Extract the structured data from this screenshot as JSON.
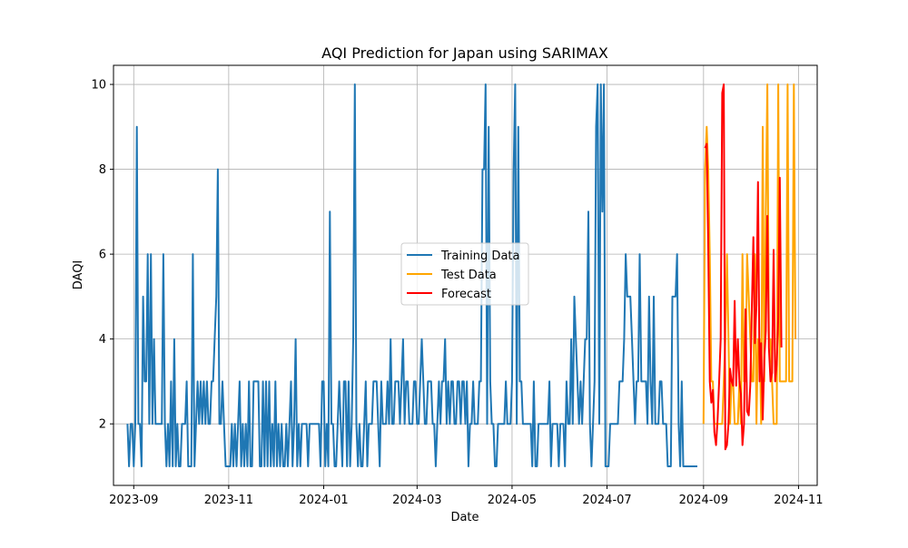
{
  "chart_data": {
    "type": "line",
    "title": "AQI Prediction for Japan using SARIMAX",
    "xlabel": "Date",
    "ylabel": "DAQI",
    "x_ticks": [
      "2023-09",
      "2023-11",
      "2024-01",
      "2024-03",
      "2024-05",
      "2024-07",
      "2024-09",
      "2024-11"
    ],
    "y_ticks": [
      2,
      4,
      6,
      8,
      10
    ],
    "xlim": [
      "2023-08-19",
      "2024-11-13"
    ],
    "ylim": [
      0.55,
      10.45
    ],
    "grid": true,
    "legend_position": "center",
    "series": [
      {
        "name": "Training Data",
        "color": "#1f77b4",
        "start_date": "2023-08-28",
        "values": [
          2,
          1,
          2,
          2,
          1,
          2,
          9,
          2,
          2,
          1,
          5,
          3,
          3,
          6,
          2,
          6,
          2,
          4,
          2,
          2,
          2,
          2,
          2,
          6,
          2,
          1,
          2,
          1,
          3,
          1,
          4,
          1,
          2,
          1,
          1,
          2,
          2,
          2,
          3,
          1,
          1,
          1,
          6,
          1,
          2,
          3,
          2,
          3,
          2,
          3,
          2,
          3,
          2,
          2,
          3,
          3,
          4,
          5,
          8,
          2,
          2,
          3,
          2,
          1,
          1,
          1,
          1,
          2,
          1,
          2,
          1,
          2,
          3,
          1,
          2,
          1,
          2,
          1,
          3,
          1,
          1,
          3,
          3,
          3,
          3,
          1,
          1,
          3,
          1,
          3,
          1,
          3,
          1,
          2,
          1,
          3,
          1,
          2,
          1,
          2,
          1,
          1,
          2,
          1,
          2,
          3,
          1,
          2,
          4,
          1,
          2,
          1,
          2,
          2,
          2,
          2,
          1,
          2,
          2,
          2,
          2,
          2,
          2,
          2,
          1,
          3,
          3,
          1,
          2,
          1,
          7,
          2,
          2,
          1,
          1,
          2,
          3,
          2,
          1,
          3,
          3,
          1,
          3,
          1,
          2,
          4,
          10,
          2,
          1,
          2,
          1,
          1,
          2,
          3,
          1,
          2,
          2,
          2,
          3,
          3,
          3,
          2,
          1,
          3,
          2,
          2,
          2,
          3,
          2,
          4,
          2,
          2,
          3,
          3,
          3,
          2,
          3,
          4,
          2,
          3,
          3,
          2,
          2,
          2,
          3,
          3,
          2,
          2,
          3,
          4,
          3,
          2,
          2,
          3,
          3,
          3,
          2,
          2,
          1,
          2,
          3,
          2,
          3,
          3,
          4,
          2,
          3,
          2,
          3,
          3,
          2,
          2,
          3,
          3,
          2,
          3,
          3,
          2,
          3,
          1,
          2,
          2,
          3,
          2,
          2,
          2,
          3,
          3,
          8,
          8,
          10,
          2,
          9,
          3,
          2,
          2,
          1,
          1,
          2,
          2,
          2,
          2,
          2,
          3,
          2,
          2,
          2,
          3,
          8,
          10,
          2,
          9,
          3,
          3,
          2,
          2,
          2,
          2,
          2,
          2,
          1,
          3,
          1,
          1,
          2,
          2,
          2,
          2,
          2,
          2,
          2,
          3,
          1,
          2,
          2,
          2,
          2,
          1,
          2,
          2,
          2,
          1,
          3,
          2,
          2,
          4,
          2,
          5,
          4,
          3,
          2,
          3,
          2,
          3,
          4,
          4,
          7,
          2,
          1,
          2,
          3,
          9,
          10,
          2,
          10,
          7,
          10,
          1,
          1,
          1,
          2,
          2,
          2,
          2,
          2,
          2,
          3,
          3,
          3,
          4,
          6,
          5,
          5,
          5,
          4,
          3,
          2,
          3,
          3,
          6,
          3,
          3,
          3,
          3,
          2,
          5,
          3,
          2,
          5,
          2,
          2,
          2,
          3,
          3,
          2,
          2,
          2,
          1,
          1,
          1,
          5,
          5,
          5,
          6,
          2,
          1,
          3,
          1,
          1,
          1,
          1,
          1,
          1,
          1,
          1,
          1,
          1
        ]
      },
      {
        "name": "Test Data",
        "color": "#ffa500",
        "start_date": "2024-09-01",
        "values": [
          2,
          8,
          9,
          8,
          6,
          3,
          3,
          2,
          2,
          2,
          2,
          2,
          2,
          3,
          4,
          6,
          4,
          2,
          3,
          3,
          2,
          2,
          2,
          3,
          2,
          6,
          3,
          3,
          6,
          5,
          4,
          3,
          3,
          6,
          2,
          4,
          4,
          2,
          9,
          3,
          7,
          10,
          4,
          4,
          3,
          2,
          2,
          2,
          10,
          3,
          3,
          3,
          3,
          3,
          10,
          3,
          3,
          3,
          10,
          4
        ]
      },
      {
        "name": "Forecast",
        "color": "#ff0000",
        "start_date": "2024-09-02",
        "values": [
          8.5,
          8.6,
          6.2,
          3.0,
          2.5,
          2.8,
          1.8,
          1.5,
          2.1,
          3.0,
          4.0,
          9.8,
          10.0,
          1.4,
          1.5,
          2.0,
          3.3,
          3.0,
          2.9,
          4.9,
          2.9,
          4.0,
          3.0,
          2.7,
          1.5,
          2.0,
          4.7,
          2.3,
          2.2,
          2.9,
          4.7,
          6.4,
          3.9,
          4.8,
          7.7,
          3.0,
          3.9,
          2.1,
          3.5,
          4.2,
          6.9,
          3.8,
          3.0,
          3.2,
          6.1,
          3.0,
          3.4,
          4.5,
          7.8,
          3.8
        ]
      }
    ]
  }
}
